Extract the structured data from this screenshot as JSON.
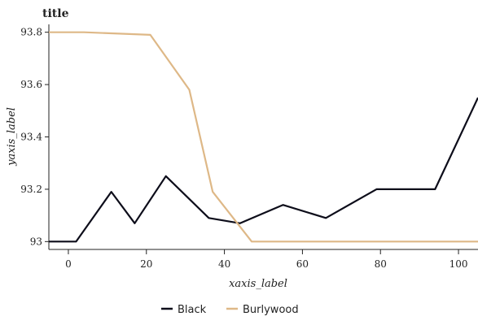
{
  "chart_data": {
    "type": "line",
    "title": "title",
    "xlabel": "xaxis_label",
    "ylabel": "yaxis_label",
    "xlim": [
      -5,
      105
    ],
    "ylim": [
      92.97,
      93.83
    ],
    "x_ticks": [
      0,
      20,
      40,
      60,
      80,
      100
    ],
    "y_ticks": [
      93,
      93.2,
      93.4,
      93.6,
      93.8
    ],
    "grid": false,
    "legend_position": "bottom",
    "series": [
      {
        "name": "Black",
        "color": "#0d0d1a",
        "x": [
          -5,
          2,
          11,
          17,
          25,
          36,
          44,
          55,
          66,
          79,
          94,
          105
        ],
        "y": [
          93,
          93,
          93.19,
          93.07,
          93.25,
          93.09,
          93.07,
          93.14,
          93.09,
          93.2,
          93.2,
          93.55
        ]
      },
      {
        "name": "Burlywood",
        "color": "#deb887",
        "x": [
          -5,
          4,
          21,
          31,
          37,
          47,
          105
        ],
        "y": [
          93.8,
          93.8,
          93.79,
          93.58,
          93.19,
          93,
          93
        ]
      }
    ]
  }
}
